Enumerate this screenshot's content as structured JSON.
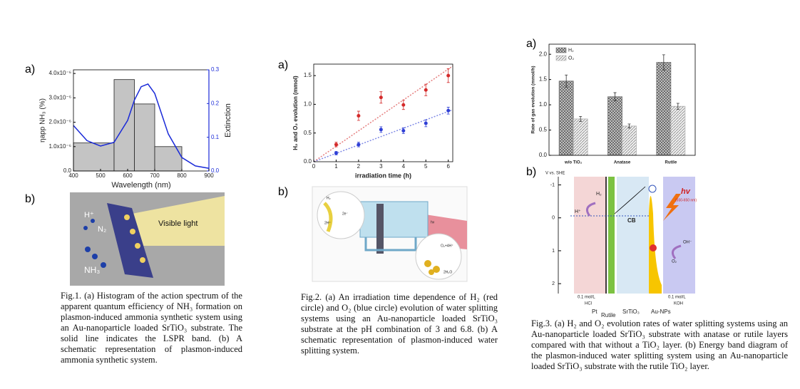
{
  "figures": [
    {
      "panel_a": "a)",
      "panel_b": "b)",
      "chart": {
        "type": "histogram",
        "bins": [
          400,
          550,
          625,
          700,
          800
        ],
        "counts": [
          1.15e-06,
          3.75e-06,
          2.75e-06,
          1e-06
        ],
        "color": "#c4c4c4",
        "xlim": [
          400,
          900
        ],
        "xticks": [
          400,
          500,
          600,
          700,
          800,
          900
        ],
        "ylim": [
          0,
          4.15e-06
        ],
        "yticks": [
          {
            "value": 0,
            "label": "0.0"
          },
          {
            "value": 1e-06,
            "label": "1.0x10⁻⁶"
          },
          {
            "value": 2e-06,
            "label": "2.0x10⁻⁶"
          },
          {
            "value": 3e-06,
            "label": "3.0x10⁻⁶"
          },
          {
            "value": 4e-06,
            "label": "4.0x10⁻⁶"
          }
        ],
        "y2lim": [
          0,
          0.3
        ],
        "y2ticks": [
          {
            "value": 0,
            "label": "0.0"
          },
          0.1,
          0.2,
          0.3
        ],
        "x_label": "Wavelength (nm)",
        "y_label": "ηapp NH₃ (%)",
        "y2_label": "Extinction",
        "line": {
          "axis": "y2",
          "color": "#1a2ad8",
          "x": [
            400,
            450,
            500,
            550,
            600,
            625,
            650,
            675,
            700,
            725,
            750,
            800,
            850,
            900
          ],
          "values": [
            0.135,
            0.09,
            0.074,
            0.085,
            0.15,
            0.21,
            0.25,
            0.258,
            0.23,
            0.17,
            0.11,
            0.04,
            0.015,
            0.008
          ]
        }
      },
      "schematic": {
        "h_plus": "H⁺",
        "n2": "N₂",
        "nh3": "NH₃",
        "light": "Visible light"
      },
      "caption": "Fig.1. (a) Histogram of the action spectrum of the apparent quantum efficiency of NH₃ formation on plasmon-induced ammonia synthetic system using an Au-nanoparticle loaded SrTiO₃ substrate. The solid line indicates the LSPR band. (b) A schematic representation of plasmon-induced ammonia synthetic system."
    },
    {
      "panel_a": "a)",
      "panel_b": "b)",
      "chart": {
        "type": "scatter",
        "xlim": [
          0,
          6.2
        ],
        "xticks": [
          0,
          1,
          2,
          3,
          4,
          5,
          6
        ],
        "ylim": [
          0,
          1.7
        ],
        "yticks": [
          {
            "value": 0,
            "label": "0.0"
          },
          0.5,
          {
            "value": 1,
            "label": "1.0"
          },
          1.5
        ],
        "x_label": "irradiation time (h)",
        "y_label": "H₂ and O₂ evolution (mmol)",
        "series": [
          {
            "color": "#d42a2a",
            "x": [
              1,
              2,
              3,
              4,
              5,
              6
            ],
            "values": [
              0.3,
              0.8,
              1.12,
              0.99,
              1.25,
              1.5
            ],
            "errors": [
              0.04,
              0.08,
              0.1,
              0.08,
              0.1,
              0.12
            ]
          },
          {
            "color": "#2f3fd6",
            "x": [
              1,
              2,
              3,
              4,
              5,
              6
            ],
            "values": [
              0.15,
              0.3,
              0.56,
              0.54,
              0.67,
              0.89
            ],
            "errors": [
              0.03,
              0.04,
              0.05,
              0.05,
              0.06,
              0.06
            ]
          }
        ]
      },
      "schematic": {
        "hv": "hν",
        "h2": "H₂",
        "o2": "O₂+4H⁺",
        "water": "2H₂O",
        "protons": "2H⁺",
        "electrons": "2e⁻"
      },
      "caption": "Fig.2. (a) An irradiation time dependence of H₂ (red circle) and O₂ (blue circle) evolution of water splitting systems using an Au-nanoparticle loaded SrTiO₃ substrate at the pH combination of 3 and 6.8. (b) A schematic representation of plasmon-induced water splitting system."
    },
    {
      "panel_a": "a)",
      "panel_b": "b)",
      "chart": {
        "type": "bar",
        "categories": [
          "w/o TiO₂",
          "Anatase",
          "Rutile"
        ],
        "ylim": [
          0,
          2.2
        ],
        "yticks": [
          {
            "value": 0,
            "label": "0.0"
          },
          0.5,
          {
            "value": 1,
            "label": "1.0"
          },
          1.5,
          {
            "value": 2,
            "label": "2.0"
          }
        ],
        "y_label": "Rate of gas evolution (mmol/h)",
        "legend": "top-left",
        "series": [
          {
            "name": "H₂",
            "color": "#6e6e6e",
            "pattern": "crosshatch",
            "values": [
              1.47,
              1.16,
              1.84
            ],
            "errors": [
              0.12,
              0.08,
              0.15
            ]
          },
          {
            "name": "O₂",
            "color": "#b0b0b0",
            "pattern": "diagonal",
            "values": [
              0.72,
              0.58,
              0.97
            ],
            "errors": [
              0.05,
              0.04,
              0.06
            ]
          }
        ]
      },
      "diagram": {
        "axis_label": "V vs. SHE",
        "ylim": [
          -1.25,
          2.3
        ],
        "yticks": [
          -1,
          0,
          1,
          2
        ],
        "h2": "H₂",
        "h_plus": "H⁺",
        "cb": "CB",
        "hv": "hv",
        "range": "(550-650 nm)",
        "oh": "OH⁻",
        "o2": "O₂",
        "hcl_conc": "0.1 mol/L",
        "hcl": "HCl",
        "koh_conc": "0.1 mol/L",
        "koh": "KOH",
        "pt": "Pt",
        "rutile": "Rutile",
        "srtio3": "SrTiO₃",
        "au": "Au-NPs"
      },
      "caption": "Fig.3. (a) H₂ and O₂ evolution rates of water splitting systems using an Au-nanoparticle loaded SrTiO₃ substrate with anatase or rutile layers compared with that without a TiO₂ layer. (b) Energy band diagram of the plasmon-induced water splitting system using an Au-nanoparticle loaded SrTiO₃ substrate with the rutile TiO₂ layer."
    }
  ]
}
